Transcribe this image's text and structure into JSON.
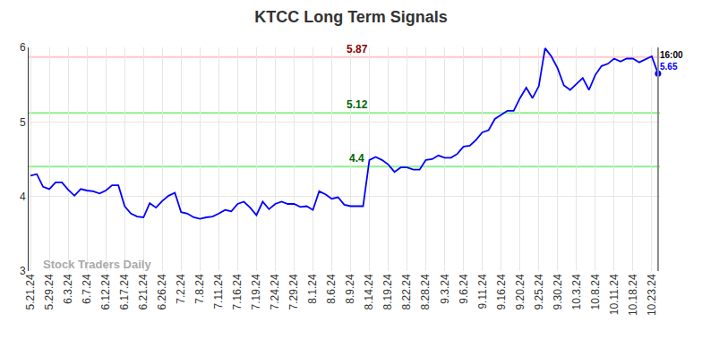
{
  "chart_data": {
    "type": "line",
    "title": "KTCC Long Term Signals",
    "categories": [
      "5.21.24",
      null,
      null,
      "5.29.24",
      null,
      null,
      "6.3.24",
      null,
      null,
      "6.7.24",
      null,
      null,
      "6.12.24",
      null,
      null,
      "6.17.24",
      null,
      null,
      "6.21.24",
      null,
      null,
      "6.26.24",
      null,
      null,
      "7.2.24",
      null,
      null,
      "7.8.24",
      null,
      null,
      "7.11.24",
      null,
      null,
      "7.16.24",
      null,
      null,
      "7.19.24",
      null,
      null,
      "7.24.24",
      null,
      null,
      "7.29.24",
      null,
      null,
      "8.1.24",
      null,
      null,
      "8.6.24",
      null,
      null,
      "8.9.24",
      null,
      null,
      "8.14.24",
      null,
      null,
      "8.19.24",
      null,
      null,
      "8.22.24",
      null,
      null,
      "8.28.24",
      null,
      null,
      "9.3.24",
      null,
      null,
      "9.6.24",
      null,
      null,
      "9.11.24",
      null,
      null,
      "9.16.24",
      null,
      null,
      "9.20.24",
      null,
      null,
      "9.25.24",
      null,
      null,
      "9.30.24",
      null,
      null,
      "10.3.24",
      null,
      null,
      "10.8.24",
      null,
      null,
      "10.11.24",
      null,
      null,
      "10.18.24",
      null,
      null,
      "10.23.24",
      null
    ],
    "values": [
      4.28,
      4.3,
      4.13,
      4.1,
      4.19,
      4.19,
      4.09,
      4.01,
      4.1,
      4.08,
      4.07,
      4.04,
      4.08,
      4.15,
      4.15,
      3.87,
      3.77,
      3.73,
      3.72,
      3.91,
      3.85,
      3.94,
      4.01,
      4.05,
      3.79,
      3.77,
      3.72,
      3.7,
      3.72,
      3.73,
      3.77,
      3.82,
      3.8,
      3.9,
      3.93,
      3.85,
      3.75,
      3.93,
      3.83,
      3.9,
      3.93,
      3.9,
      3.9,
      3.86,
      3.87,
      3.82,
      4.07,
      4.03,
      3.97,
      3.99,
      3.89,
      3.87,
      3.87,
      3.87,
      4.49,
      4.53,
      4.49,
      4.43,
      4.33,
      4.39,
      4.39,
      4.36,
      4.36,
      4.49,
      4.5,
      4.55,
      4.52,
      4.52,
      4.57,
      4.67,
      4.68,
      4.76,
      4.86,
      4.89,
      5.04,
      5.1,
      5.15,
      5.15,
      5.32,
      5.46,
      5.32,
      5.48,
      5.99,
      5.88,
      5.72,
      5.49,
      5.43,
      5.51,
      5.59,
      5.43,
      5.63,
      5.75,
      5.78,
      5.85,
      5.81,
      5.85,
      5.85,
      5.8,
      5.84,
      5.88,
      5.65
    ],
    "color": "#0000ff",
    "ylim": [
      3,
      6
    ],
    "yticks": [
      3,
      4,
      5,
      6
    ],
    "grid": true,
    "reference_lines": [
      {
        "value": 5.87,
        "label": "5.87",
        "color": "#ffc8c8"
      },
      {
        "value": 5.12,
        "label": "5.12",
        "color": "#90ee90"
      },
      {
        "value": 4.4,
        "label": "4.4",
        "color": "#90ee90"
      }
    ],
    "end_labels": {
      "time": "16:00",
      "price": "5.65"
    },
    "watermark": "Stock Traders Daily"
  }
}
